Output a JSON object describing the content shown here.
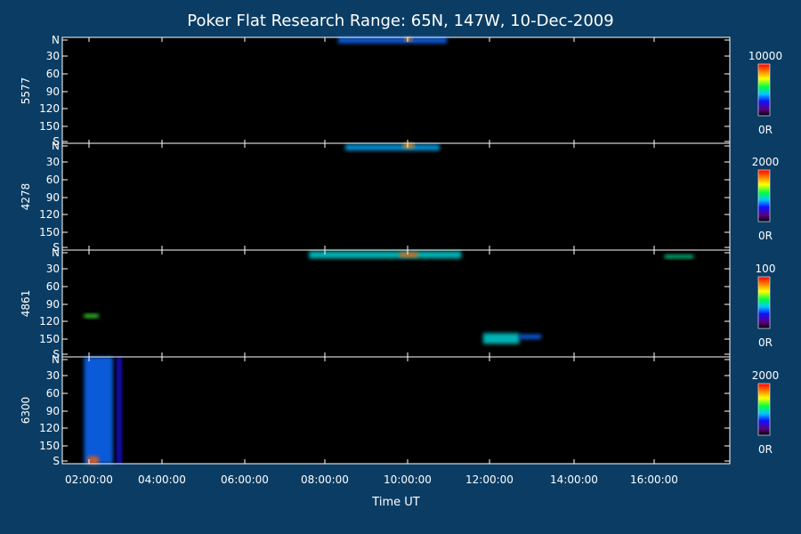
{
  "chart_data": {
    "type": "heatmap",
    "title": "Poker Flat Research Range: 65N, 147W, 10-Dec-2009",
    "xlabel": "Time UT",
    "x_range": [
      "01:50:00",
      "17:10:00"
    ],
    "x_ticks": [
      "02:00:00",
      "04:00:00",
      "06:00:00",
      "08:00:00",
      "10:00:00",
      "12:00:00",
      "14:00:00",
      "16:00:00"
    ],
    "y_range": [
      0,
      180
    ],
    "y_ticks": [
      "N",
      "30",
      "60",
      "90",
      "120",
      "150",
      "S"
    ],
    "panels": [
      {
        "name": "5577",
        "scale_min_label": "0R",
        "scale_max_label": "10000",
        "features": [
          {
            "t_start": "08:10:00",
            "t_end": "10:40:00",
            "y_start": 0,
            "y_end": 10,
            "level": 0.35
          },
          {
            "t_start": "09:42:00",
            "t_end": "09:52:00",
            "y_start": 0,
            "y_end": 6,
            "level": 0.85
          }
        ]
      },
      {
        "name": "4278",
        "scale_min_label": "0R",
        "scale_max_label": "2000",
        "features": [
          {
            "t_start": "08:20:00",
            "t_end": "10:30:00",
            "y_start": 2,
            "y_end": 12,
            "level": 0.4
          },
          {
            "t_start": "09:40:00",
            "t_end": "09:55:00",
            "y_start": 0,
            "y_end": 8,
            "level": 0.85
          }
        ]
      },
      {
        "name": "4861",
        "scale_min_label": "0R",
        "scale_max_label": "100",
        "features": [
          {
            "t_start": "07:30:00",
            "t_end": "11:00:00",
            "y_start": 2,
            "y_end": 14,
            "level": 0.45
          },
          {
            "t_start": "09:35:00",
            "t_end": "10:00:00",
            "y_start": 4,
            "y_end": 12,
            "level": 0.9
          },
          {
            "t_start": "15:40:00",
            "t_end": "16:20:00",
            "y_start": 8,
            "y_end": 14,
            "level": 0.5
          },
          {
            "t_start": "02:20:00",
            "t_end": "02:40:00",
            "y_start": 108,
            "y_end": 114,
            "level": 0.6
          },
          {
            "t_start": "11:30:00",
            "t_end": "12:20:00",
            "y_start": 140,
            "y_end": 158,
            "level": 0.45
          },
          {
            "t_start": "12:20:00",
            "t_end": "12:50:00",
            "y_start": 142,
            "y_end": 150,
            "level": 0.35
          }
        ]
      },
      {
        "name": "6300",
        "scale_min_label": "0R",
        "scale_max_label": "2000",
        "features": [
          {
            "t_start": "02:20:00",
            "t_end": "03:00:00",
            "y_start": 0,
            "y_end": 180,
            "level": 0.35
          },
          {
            "t_start": "02:25:00",
            "t_end": "02:40:00",
            "y_start": 168,
            "y_end": 180,
            "level": 0.9
          },
          {
            "t_start": "03:05:00",
            "t_end": "03:12:00",
            "y_start": 0,
            "y_end": 180,
            "level": 0.25
          }
        ]
      }
    ]
  }
}
